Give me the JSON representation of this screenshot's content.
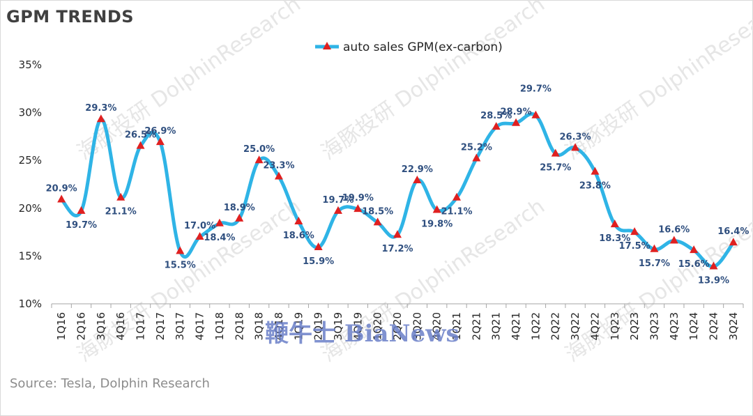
{
  "title": "GPM TRENDS",
  "source": "Source: Tesla, Dolphin Research",
  "overlay_text": "鞭牛士 BiaNews",
  "watermark_text": "海豚投研 DolphinResearch",
  "colors": {
    "line": "#2fb4e6",
    "marker": "#e02020",
    "label": "#2f4f7f",
    "axis": "#a6a6a6"
  },
  "chart_data": {
    "type": "line",
    "title": "GPM TRENDS",
    "xlabel": "",
    "ylabel": "",
    "categories": [
      "1Q16",
      "2Q16",
      "3Q16",
      "4Q16",
      "1Q17",
      "2Q17",
      "3Q17",
      "4Q17",
      "1Q18",
      "2Q18",
      "3Q18",
      "4Q18",
      "1Q19",
      "2Q19",
      "3Q19",
      "4Q19",
      "1Q20",
      "2Q20",
      "3Q20",
      "4Q20",
      "1Q21",
      "2Q21",
      "3Q21",
      "4Q21",
      "1Q22",
      "2Q22",
      "3Q22",
      "4Q22",
      "1Q23",
      "2Q23",
      "3Q23",
      "4Q23",
      "1Q24",
      "2Q24",
      "3Q24"
    ],
    "series": [
      {
        "name": "auto sales GPM(ex-carbon)",
        "values": [
          20.9,
          19.7,
          29.3,
          21.1,
          26.5,
          26.9,
          15.5,
          17.0,
          18.4,
          18.9,
          25.0,
          23.3,
          18.6,
          15.9,
          19.7,
          19.9,
          18.5,
          17.2,
          22.9,
          19.8,
          21.1,
          25.2,
          28.5,
          28.9,
          29.7,
          25.7,
          26.3,
          23.8,
          18.3,
          17.5,
          15.7,
          16.6,
          15.6,
          13.9,
          16.4
        ],
        "labels": [
          "20.9%",
          "19.7%",
          "29.3%",
          "21.1%",
          "26.5%",
          "26.9%",
          "15.5%",
          "17.0%",
          "18.4%",
          "18.9%",
          "25.0%",
          "23.3%",
          "18.6%",
          "15.9%",
          "19.7%",
          "19.9%",
          "18.5%",
          "17.2%",
          "22.9%",
          "19.8%",
          "21.1%",
          "25.2%",
          "28.5%",
          "28.9%",
          "29.7%",
          "25.7%",
          "26.3%",
          "23.8%",
          "18.3%",
          "17.5%",
          "15.7%",
          "16.6%",
          "15.6%",
          "13.9%",
          "16.4%"
        ]
      }
    ],
    "y_ticks": [
      "10%",
      "15%",
      "20%",
      "25%",
      "30%",
      "35%"
    ],
    "y_tick_values": [
      10,
      15,
      20,
      25,
      30,
      35
    ],
    "ylim": [
      10,
      35
    ],
    "grid": false,
    "legend_position": "top-center"
  }
}
